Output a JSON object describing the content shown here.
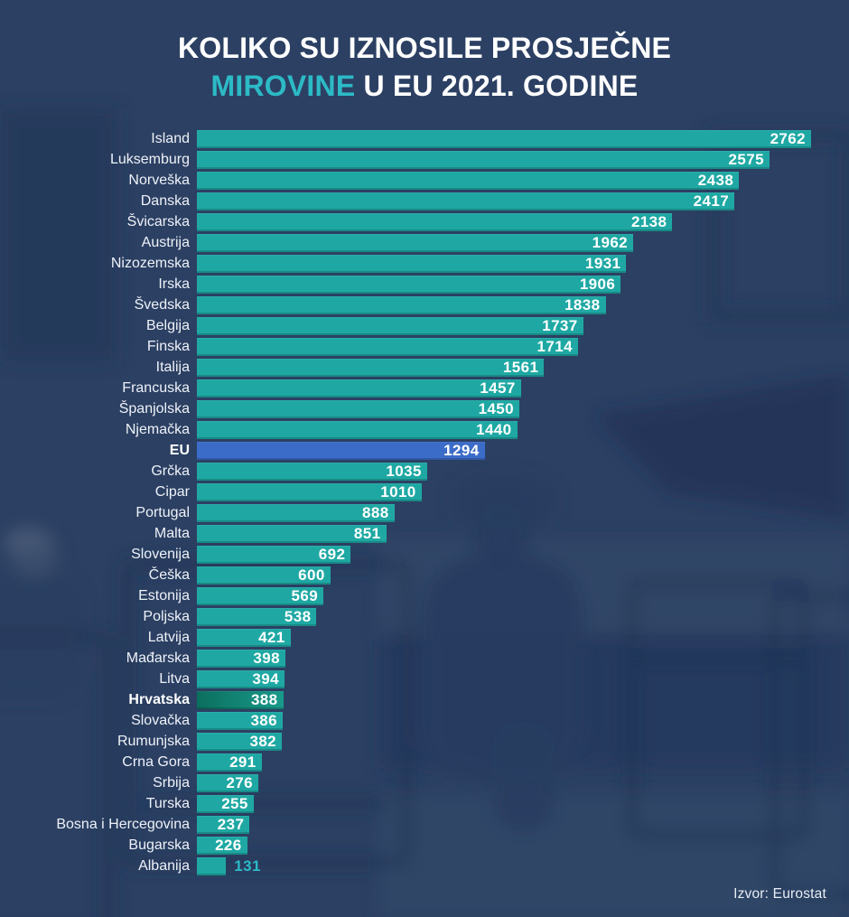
{
  "header": {
    "line1": "KOLIKO SU IZNOSILE PROSJEČNE",
    "highlight": "MIROVINE",
    "line2_rest": " U EU 2021. GODINE"
  },
  "source": "Izvor: Eurostat",
  "colors": {
    "bg": "#2c4063",
    "bar": "#1fa8a3",
    "bar_eu": "#3b6cc8",
    "cro_a": "#0c6f5e",
    "cro_b": "#189a8b",
    "accent": "#2cbac6",
    "text": "#ffffff"
  },
  "chart_data": {
    "type": "bar",
    "orientation": "horizontal",
    "title": "KOLIKO SU IZNOSILE PROSJEČNE MIROVINE U EU 2021. GODINE",
    "source": "Izvor: Eurostat",
    "xmax": 2762,
    "grid": false,
    "legend": false,
    "highlights": {
      "EU": "blue-bar",
      "Hrvatska": "dark-green-bar"
    },
    "rows": [
      {
        "label": "Island",
        "value": 2762
      },
      {
        "label": "Luksemburg",
        "value": 2575
      },
      {
        "label": "Norveška",
        "value": 2438
      },
      {
        "label": "Danska",
        "value": 2417
      },
      {
        "label": "Švicarska",
        "value": 2138
      },
      {
        "label": "Austrija",
        "value": 1962
      },
      {
        "label": "Nizozemska",
        "value": 1931
      },
      {
        "label": "Irska",
        "value": 1906
      },
      {
        "label": "Švedska",
        "value": 1838
      },
      {
        "label": "Belgija",
        "value": 1737
      },
      {
        "label": "Finska",
        "value": 1714
      },
      {
        "label": "Italija",
        "value": 1561
      },
      {
        "label": "Francuska",
        "value": 1457
      },
      {
        "label": "Španjolska",
        "value": 1450
      },
      {
        "label": "Njemačka",
        "value": 1440
      },
      {
        "label": "EU",
        "value": 1294,
        "style": "eu",
        "bold": true
      },
      {
        "label": "Grčka",
        "value": 1035
      },
      {
        "label": "Cipar",
        "value": 1010
      },
      {
        "label": "Portugal",
        "value": 888
      },
      {
        "label": "Malta",
        "value": 851
      },
      {
        "label": "Slovenija",
        "value": 692
      },
      {
        "label": "Češka",
        "value": 600
      },
      {
        "label": "Estonija",
        "value": 569
      },
      {
        "label": "Poljska",
        "value": 538
      },
      {
        "label": "Latvija",
        "value": 421
      },
      {
        "label": "Mađarska",
        "value": 398
      },
      {
        "label": "Litva",
        "value": 394
      },
      {
        "label": "Hrvatska",
        "value": 388,
        "style": "croatia",
        "bold": true
      },
      {
        "label": "Slovačka",
        "value": 386
      },
      {
        "label": "Rumunjska",
        "value": 382
      },
      {
        "label": "Crna Gora",
        "value": 291
      },
      {
        "label": "Srbija",
        "value": 276
      },
      {
        "label": "Turska",
        "value": 255
      },
      {
        "label": "Bosna i Hercegovina",
        "value": 237
      },
      {
        "label": "Bugarska",
        "value": 226
      },
      {
        "label": "Albanija",
        "value": 131,
        "value_outside": true
      }
    ]
  }
}
